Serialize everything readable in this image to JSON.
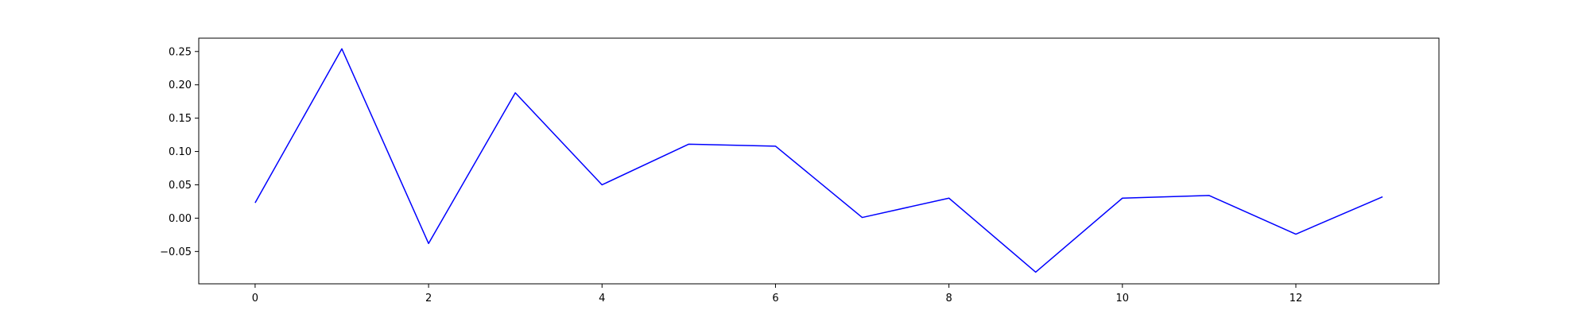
{
  "chart_data": {
    "type": "line",
    "title": "",
    "xlabel": "",
    "ylabel": "",
    "xlim": [
      -0.65,
      13.65
    ],
    "ylim": [
      -0.0985,
      0.27
    ],
    "x_ticks": [
      0,
      2,
      4,
      6,
      8,
      10,
      12
    ],
    "x_tick_labels": [
      "0",
      "2",
      "4",
      "6",
      "8",
      "10",
      "12"
    ],
    "y_ticks": [
      -0.05,
      0.0,
      0.05,
      0.1,
      0.15,
      0.2,
      0.25
    ],
    "y_tick_labels": [
      "−0.05",
      "0.00",
      "0.05",
      "0.10",
      "0.15",
      "0.20",
      "0.25"
    ],
    "grid": false,
    "series": [
      {
        "color": "#0000ff",
        "x": [
          0,
          1,
          2,
          3,
          4,
          5,
          6,
          7,
          8,
          9,
          10,
          11,
          12,
          13
        ],
        "values": [
          0.023,
          0.254,
          -0.038,
          0.188,
          0.05,
          0.111,
          0.108,
          0.001,
          0.03,
          -0.081,
          0.03,
          0.034,
          -0.024,
          0.032
        ]
      }
    ]
  }
}
